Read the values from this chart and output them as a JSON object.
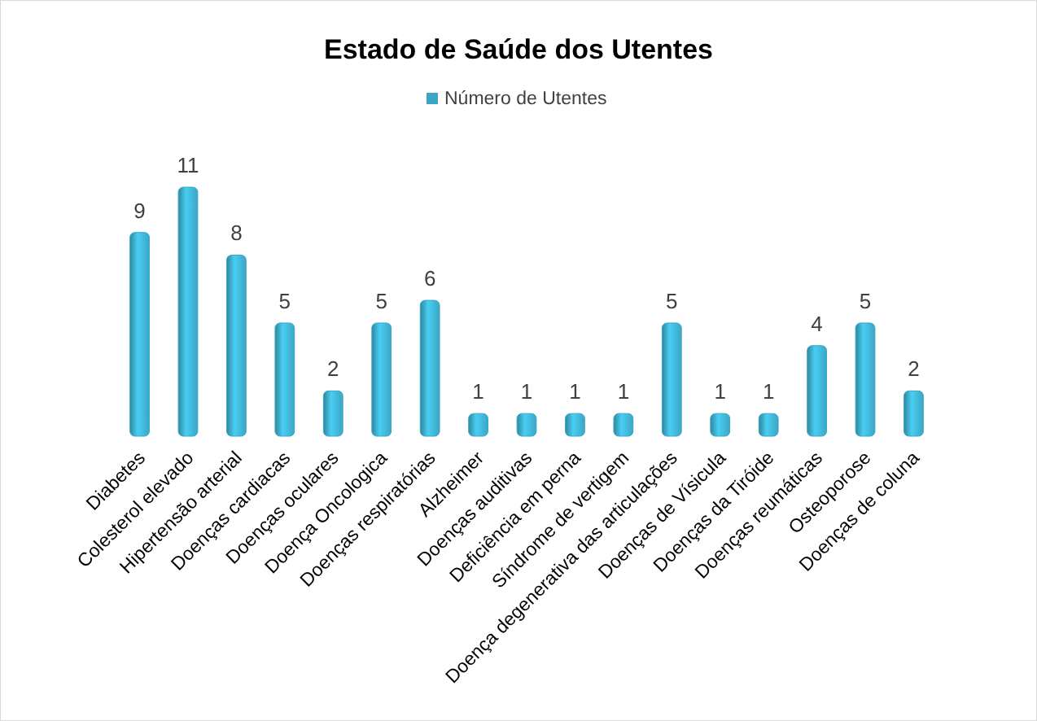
{
  "chart_data": {
    "type": "bar",
    "title": "Estado de Saúde dos Utentes",
    "categories": [
      "Diabetes",
      "Colesterol elevado",
      "Hipertensão arterial",
      "Doenças cardiacas",
      "Doenças oculares",
      "Doença Oncologica",
      "Doenças respiratórias",
      "Alzheimer",
      "Doenças auditivas",
      "Deficiência em perna",
      "Síndrome de vertigem",
      "Doença degenerativa das articulações",
      "Doenças de Vísicula",
      "Doenças da Tiróide",
      "Doenças reumáticas",
      "Osteoporose",
      "Doenças de coluna"
    ],
    "series": [
      {
        "name": "Número de Utentes",
        "color": "#3ba6c4",
        "values": [
          9,
          11,
          8,
          5,
          2,
          5,
          6,
          1,
          1,
          1,
          1,
          5,
          1,
          1,
          4,
          5,
          2
        ]
      }
    ],
    "data_labels": true,
    "legend": "top",
    "grid": false
  }
}
